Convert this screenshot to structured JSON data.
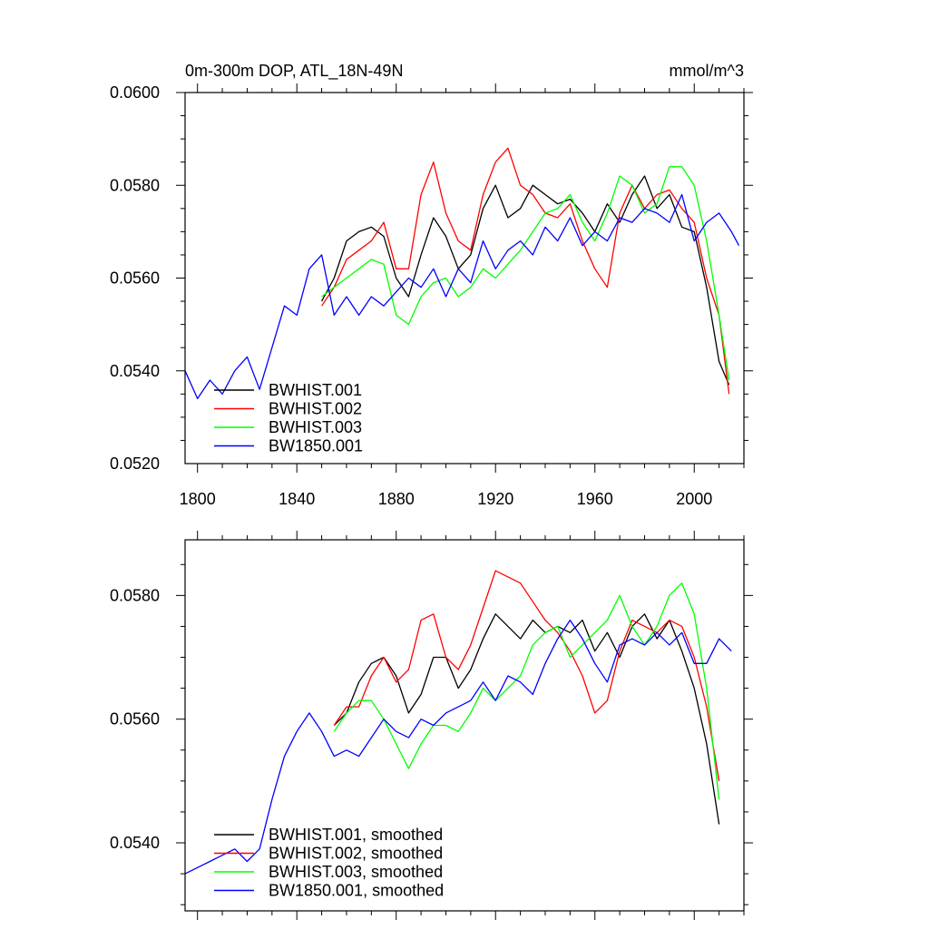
{
  "chart_data": [
    {
      "type": "line",
      "title": "0m-300m DOP, ATL_18N-49N",
      "units": "mmol/m^3",
      "xlim": [
        1795,
        2020
      ],
      "ylim": [
        0.052,
        0.06
      ],
      "xticks": [
        1800,
        1840,
        1880,
        1920,
        1960,
        2000
      ],
      "yticks": [
        0.052,
        0.054,
        0.056,
        0.058,
        0.06
      ],
      "ytick_labels": [
        "0.0520",
        "0.0540",
        "0.0560",
        "0.0580",
        "0.0600"
      ],
      "legend_position": "bottom-left",
      "series": [
        {
          "name": "BWHIST.001",
          "color": "#000000",
          "x": [
            1850,
            1855,
            1860,
            1865,
            1870,
            1875,
            1880,
            1885,
            1890,
            1895,
            1900,
            1905,
            1910,
            1915,
            1920,
            1925,
            1930,
            1935,
            1940,
            1945,
            1950,
            1955,
            1960,
            1965,
            1970,
            1975,
            1980,
            1985,
            1990,
            1995,
            2000,
            2005,
            2010,
            2014
          ],
          "values": [
            0.0555,
            0.056,
            0.0568,
            0.057,
            0.0571,
            0.0569,
            0.056,
            0.0556,
            0.0565,
            0.0573,
            0.0569,
            0.0562,
            0.0565,
            0.0575,
            0.058,
            0.0573,
            0.0575,
            0.058,
            0.0578,
            0.0576,
            0.0577,
            0.0574,
            0.057,
            0.0576,
            0.0572,
            0.0578,
            0.0582,
            0.0575,
            0.0578,
            0.0571,
            0.057,
            0.0558,
            0.0542,
            0.0537
          ]
        },
        {
          "name": "BWHIST.002",
          "color": "#ff0000",
          "x": [
            1850,
            1855,
            1860,
            1865,
            1870,
            1875,
            1880,
            1885,
            1890,
            1895,
            1900,
            1905,
            1910,
            1915,
            1920,
            1925,
            1930,
            1935,
            1940,
            1945,
            1950,
            1955,
            1960,
            1965,
            1970,
            1975,
            1980,
            1985,
            1990,
            1995,
            2000,
            2005,
            2010,
            2014
          ],
          "values": [
            0.0554,
            0.0558,
            0.0564,
            0.0566,
            0.0568,
            0.0572,
            0.0562,
            0.0562,
            0.0578,
            0.0585,
            0.0574,
            0.0568,
            0.0566,
            0.0578,
            0.0585,
            0.0588,
            0.058,
            0.0578,
            0.0574,
            0.0573,
            0.0576,
            0.0568,
            0.0562,
            0.0558,
            0.0574,
            0.058,
            0.0575,
            0.0578,
            0.0579,
            0.0575,
            0.0572,
            0.056,
            0.0552,
            0.0535
          ]
        },
        {
          "name": "BWHIST.003",
          "color": "#00ff00",
          "x": [
            1850,
            1855,
            1860,
            1865,
            1870,
            1875,
            1880,
            1885,
            1890,
            1895,
            1900,
            1905,
            1910,
            1915,
            1920,
            1925,
            1930,
            1935,
            1940,
            1945,
            1950,
            1955,
            1960,
            1965,
            1970,
            1975,
            1980,
            1985,
            1990,
            1995,
            2000,
            2005,
            2010,
            2014
          ],
          "values": [
            0.0556,
            0.0558,
            0.056,
            0.0562,
            0.0564,
            0.0563,
            0.0552,
            0.055,
            0.0556,
            0.0559,
            0.056,
            0.0556,
            0.0558,
            0.0562,
            0.056,
            0.0563,
            0.0566,
            0.057,
            0.0574,
            0.0575,
            0.0578,
            0.0572,
            0.0568,
            0.0574,
            0.0582,
            0.058,
            0.0574,
            0.0576,
            0.0584,
            0.0584,
            0.058,
            0.0568,
            0.0552,
            0.0538
          ]
        },
        {
          "name": "BW1850.001",
          "color": "#0000ff",
          "x": [
            1795,
            1800,
            1805,
            1810,
            1815,
            1820,
            1825,
            1830,
            1835,
            1840,
            1845,
            1850,
            1855,
            1860,
            1865,
            1870,
            1875,
            1880,
            1885,
            1890,
            1895,
            1900,
            1905,
            1910,
            1915,
            1920,
            1925,
            1930,
            1935,
            1940,
            1945,
            1950,
            1955,
            1960,
            1965,
            1970,
            1975,
            1980,
            1985,
            1990,
            1995,
            2000,
            2005,
            2010,
            2015,
            2018
          ],
          "values": [
            0.054,
            0.0534,
            0.0538,
            0.0535,
            0.054,
            0.0543,
            0.0536,
            0.0545,
            0.0554,
            0.0552,
            0.0562,
            0.0565,
            0.0552,
            0.0556,
            0.0552,
            0.0556,
            0.0554,
            0.0557,
            0.056,
            0.0558,
            0.0562,
            0.0556,
            0.0562,
            0.0559,
            0.0568,
            0.0562,
            0.0566,
            0.0568,
            0.0565,
            0.0571,
            0.0568,
            0.0573,
            0.0567,
            0.057,
            0.0568,
            0.0573,
            0.0572,
            0.0575,
            0.0574,
            0.0572,
            0.0578,
            0.0568,
            0.0572,
            0.0574,
            0.057,
            0.0567
          ]
        }
      ]
    },
    {
      "type": "line",
      "title": "",
      "xlim": [
        1795,
        2020
      ],
      "ylim": [
        0.0529,
        0.0589
      ],
      "xticks": [
        1800,
        1840,
        1880,
        1920,
        1960,
        2000
      ],
      "yticks": [
        0.054,
        0.056,
        0.058
      ],
      "ytick_labels": [
        "0.0540",
        "0.0560",
        "0.0580"
      ],
      "legend_position": "bottom-left",
      "series": [
        {
          "name": "BWHIST.001, smoothed",
          "color": "#000000",
          "x": [
            1855,
            1860,
            1865,
            1870,
            1875,
            1880,
            1885,
            1890,
            1895,
            1900,
            1905,
            1910,
            1915,
            1920,
            1925,
            1930,
            1935,
            1940,
            1945,
            1950,
            1955,
            1960,
            1965,
            1970,
            1975,
            1980,
            1985,
            1990,
            1995,
            2000,
            2005,
            2010
          ],
          "values": [
            0.0559,
            0.0561,
            0.0566,
            0.0569,
            0.057,
            0.0567,
            0.0561,
            0.0564,
            0.057,
            0.057,
            0.0565,
            0.0568,
            0.0573,
            0.0577,
            0.0575,
            0.0573,
            0.0576,
            0.0574,
            0.0575,
            0.0574,
            0.0576,
            0.0571,
            0.0574,
            0.057,
            0.0575,
            0.0577,
            0.0573,
            0.0576,
            0.0571,
            0.0565,
            0.0556,
            0.0543
          ]
        },
        {
          "name": "BWHIST.002, smoothed",
          "color": "#ff0000",
          "x": [
            1855,
            1860,
            1865,
            1870,
            1875,
            1880,
            1885,
            1890,
            1895,
            1900,
            1905,
            1910,
            1915,
            1920,
            1925,
            1930,
            1935,
            1940,
            1945,
            1950,
            1955,
            1960,
            1965,
            1970,
            1975,
            1980,
            1985,
            1990,
            1995,
            2000,
            2005,
            2010
          ],
          "values": [
            0.0559,
            0.0562,
            0.0562,
            0.0567,
            0.057,
            0.0566,
            0.0568,
            0.0576,
            0.0577,
            0.057,
            0.0568,
            0.0572,
            0.0578,
            0.0584,
            0.0583,
            0.0582,
            0.0579,
            0.0576,
            0.0574,
            0.0571,
            0.0567,
            0.0561,
            0.0563,
            0.0571,
            0.0576,
            0.0575,
            0.0574,
            0.0576,
            0.0575,
            0.057,
            0.0562,
            0.055
          ]
        },
        {
          "name": "BWHIST.003, smoothed",
          "color": "#00ff00",
          "x": [
            1855,
            1860,
            1865,
            1870,
            1875,
            1880,
            1885,
            1890,
            1895,
            1900,
            1905,
            1910,
            1915,
            1920,
            1925,
            1930,
            1935,
            1940,
            1945,
            1950,
            1955,
            1960,
            1965,
            1970,
            1975,
            1980,
            1985,
            1990,
            1995,
            2000,
            2005,
            2010
          ],
          "values": [
            0.0558,
            0.0561,
            0.0563,
            0.0563,
            0.056,
            0.0556,
            0.0552,
            0.0556,
            0.0559,
            0.0559,
            0.0558,
            0.0561,
            0.0565,
            0.0563,
            0.0565,
            0.0567,
            0.0572,
            0.0574,
            0.0575,
            0.057,
            0.0572,
            0.0574,
            0.0576,
            0.058,
            0.0575,
            0.0572,
            0.0575,
            0.058,
            0.0582,
            0.0577,
            0.0565,
            0.0547
          ]
        },
        {
          "name": "BW1850.001, smoothed",
          "color": "#0000ff",
          "x": [
            1795,
            1800,
            1805,
            1810,
            1815,
            1820,
            1825,
            1830,
            1835,
            1840,
            1845,
            1850,
            1855,
            1860,
            1865,
            1870,
            1875,
            1880,
            1885,
            1890,
            1895,
            1900,
            1905,
            1910,
            1915,
            1920,
            1925,
            1930,
            1935,
            1940,
            1945,
            1950,
            1955,
            1960,
            1965,
            1970,
            1975,
            1980,
            1985,
            1990,
            1995,
            2000,
            2005,
            2010,
            2015
          ],
          "values": [
            0.0535,
            0.0536,
            0.0537,
            0.0538,
            0.0539,
            0.0537,
            0.0539,
            0.0547,
            0.0554,
            0.0558,
            0.0561,
            0.0558,
            0.0554,
            0.0555,
            0.0554,
            0.0557,
            0.056,
            0.0558,
            0.0557,
            0.056,
            0.0559,
            0.0561,
            0.0562,
            0.0563,
            0.0566,
            0.0563,
            0.0567,
            0.0566,
            0.0564,
            0.0569,
            0.0573,
            0.0576,
            0.0573,
            0.0569,
            0.0566,
            0.0572,
            0.0573,
            0.0572,
            0.0574,
            0.0572,
            0.0574,
            0.0569,
            0.0569,
            0.0573,
            0.0571
          ]
        }
      ]
    }
  ]
}
